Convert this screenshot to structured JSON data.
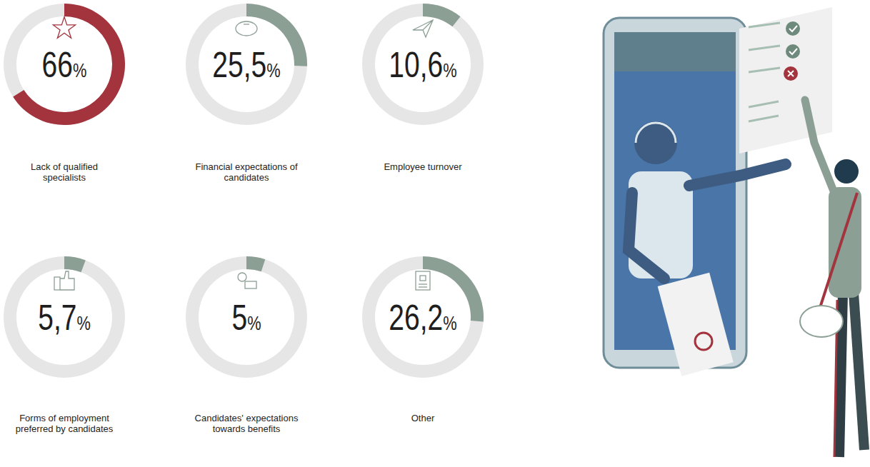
{
  "chart_data": {
    "type": "donut",
    "categories": [
      "Lack of qualified specialists",
      "Financial expectations of candidates",
      "Employee turnover",
      "Forms of employment preferred by candidates",
      "Candidates' expectations towards benefits",
      "Other"
    ],
    "values": [
      66,
      25.5,
      10.6,
      5.7,
      5,
      26.2
    ],
    "value_labels": [
      "66%",
      "25,5%",
      "10,6%",
      "5,7%",
      "5%",
      "26,2%"
    ],
    "colors": [
      "#a3333d",
      "#8c9f95",
      "#8c9f95",
      "#8c9f95",
      "#8c9f95",
      "#8c9f95"
    ],
    "ylim": [
      0,
      100
    ],
    "data_labels": true
  }
}
